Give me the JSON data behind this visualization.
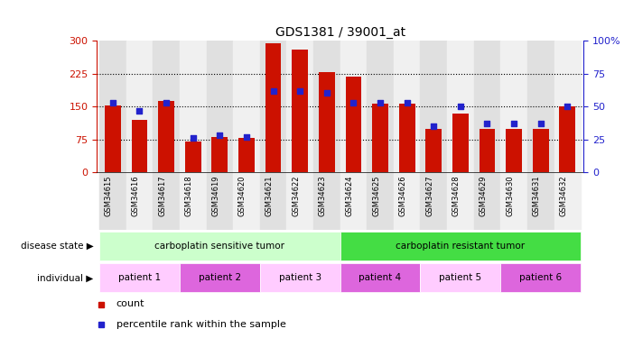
{
  "title": "GDS1381 / 39001_at",
  "samples": [
    "GSM34615",
    "GSM34616",
    "GSM34617",
    "GSM34618",
    "GSM34619",
    "GSM34620",
    "GSM34621",
    "GSM34622",
    "GSM34623",
    "GSM34624",
    "GSM34625",
    "GSM34626",
    "GSM34627",
    "GSM34628",
    "GSM34629",
    "GSM34630",
    "GSM34631",
    "GSM34632"
  ],
  "counts": [
    153,
    120,
    162,
    70,
    80,
    78,
    293,
    280,
    228,
    218,
    157,
    157,
    100,
    133,
    100,
    100,
    100,
    150
  ],
  "percentiles": [
    53,
    47,
    53,
    26,
    28,
    27,
    62,
    62,
    60,
    53,
    53,
    53,
    35,
    50,
    37,
    37,
    37,
    50
  ],
  "left_ylim": [
    0,
    300
  ],
  "right_ylim": [
    0,
    100
  ],
  "left_yticks": [
    0,
    75,
    150,
    225,
    300
  ],
  "right_yticks": [
    0,
    25,
    50,
    75,
    100
  ],
  "right_yticklabels": [
    "0",
    "25",
    "50",
    "75",
    "100%"
  ],
  "bar_color": "#cc1100",
  "dot_color": "#2222cc",
  "disease_state_groups": [
    {
      "label": "carboplatin sensitive tumor",
      "start": 0,
      "end": 8,
      "color": "#ccffcc"
    },
    {
      "label": "carboplatin resistant tumor",
      "start": 9,
      "end": 17,
      "color": "#44dd44"
    }
  ],
  "individual_groups": [
    {
      "label": "patient 1",
      "start": 0,
      "end": 2,
      "color": "#ffccff"
    },
    {
      "label": "patient 2",
      "start": 3,
      "end": 5,
      "color": "#dd66dd"
    },
    {
      "label": "patient 3",
      "start": 6,
      "end": 8,
      "color": "#ffccff"
    },
    {
      "label": "patient 4",
      "start": 9,
      "end": 11,
      "color": "#dd66dd"
    },
    {
      "label": "patient 5",
      "start": 12,
      "end": 14,
      "color": "#ffccff"
    },
    {
      "label": "patient 6",
      "start": 15,
      "end": 17,
      "color": "#dd66dd"
    }
  ],
  "disease_state_label": "disease state",
  "individual_label": "individual",
  "legend_count_label": "count",
  "legend_pct_label": "percentile rank within the sample",
  "col_bg_even": "#e0e0e0",
  "col_bg_odd": "#f0f0f0"
}
